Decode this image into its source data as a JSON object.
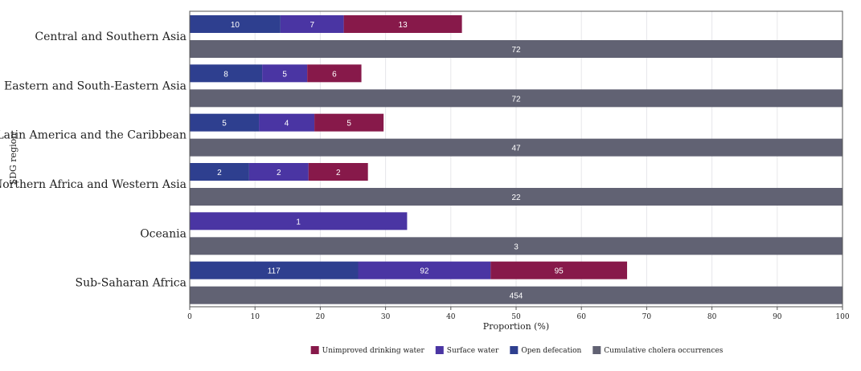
{
  "chart_data": {
    "type": "bar",
    "orientation": "horizontal",
    "stacked_groups": true,
    "categories": [
      "Central and Southern Asia",
      "Eastern and South-Eastern Asia",
      "Latin America and the Caribbean",
      "Northern Africa and Western Asia",
      "Oceania",
      "Sub-Saharan Africa"
    ],
    "xlabel": "Proportion (%)",
    "ylabel": "SDG region",
    "xlim": [
      0,
      100
    ],
    "xticks": [
      "0",
      "10",
      "20",
      "30",
      "40",
      "50",
      "60",
      "70",
      "80",
      "90",
      "100"
    ],
    "grid": "vertical",
    "legend_position": "bottom",
    "series": [
      {
        "name": "Open defecation",
        "color": "#2e3f8f",
        "stack": "wash",
        "values": [
          13.9,
          11.1,
          10.6,
          9.1,
          0,
          25.8
        ],
        "labels": [
          "10",
          "8",
          "5",
          "2",
          "",
          "117"
        ]
      },
      {
        "name": "Surface water",
        "color": "#4a35a3",
        "stack": "wash",
        "values": [
          9.7,
          6.9,
          8.5,
          9.1,
          33.3,
          20.3
        ],
        "labels": [
          "7",
          "5",
          "4",
          "2",
          "1",
          "92"
        ]
      },
      {
        "name": "Unimproved drinking water",
        "color": "#87194a",
        "stack": "wash",
        "values": [
          18.1,
          8.3,
          10.6,
          9.1,
          0,
          20.9
        ],
        "labels": [
          "13",
          "6",
          "5",
          "2",
          "",
          "95"
        ]
      },
      {
        "name": "Cumulative cholera occurrences",
        "color": "#616273",
        "stack": "total",
        "values": [
          100,
          100,
          100,
          100,
          100,
          100
        ],
        "labels": [
          "72",
          "72",
          "47",
          "22",
          "3",
          "454"
        ]
      }
    ],
    "legend_order": [
      "Unimproved drinking water",
      "Surface water",
      "Open defecation",
      "Cumulative cholera occurrences"
    ]
  }
}
